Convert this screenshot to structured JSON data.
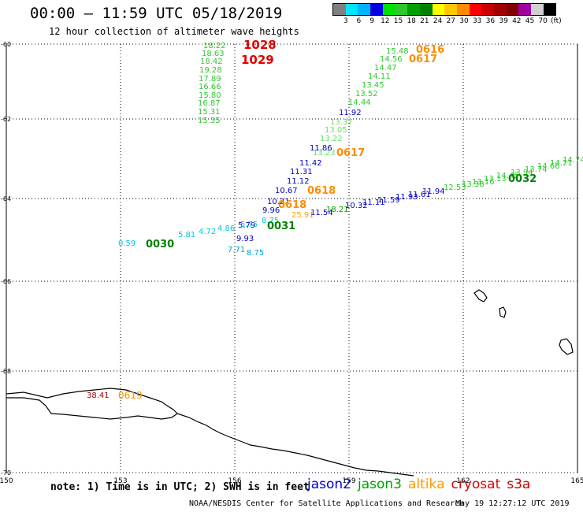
{
  "title": "00:00 – 11:59 UTC 05/18/2019",
  "subtitle": "12 hour collection of altimeter wave heights",
  "colorbar": {
    "colors": [
      "#808080",
      "#00e5ff",
      "#00b4ff",
      "#0000e0",
      "#00e000",
      "#2ec82e",
      "#00a000",
      "#008000",
      "#ffff00",
      "#ffc800",
      "#ff8c00",
      "#ff0000",
      "#c80000",
      "#a00000",
      "#800000",
      "#a000a0",
      "#d0d0d0",
      "#000000"
    ],
    "labels": [
      "3",
      "6",
      "9",
      "12",
      "15",
      "18",
      "21",
      "24",
      "27",
      "30",
      "33",
      "36",
      "39",
      "42",
      "45",
      "70",
      "(ft)"
    ]
  },
  "axes": {
    "x_ticks": [
      "150",
      "153",
      "156",
      "159",
      "162",
      "165"
    ],
    "y_ticks": [
      "-60",
      "-62",
      "-64",
      "-66",
      "-68",
      "-70"
    ]
  },
  "annotations": [
    {
      "text": "1028",
      "color": "#e00000"
    },
    {
      "text": "1029",
      "color": "#e00000"
    },
    {
      "text": "0616",
      "color": "#ff8c00"
    },
    {
      "text": "0617",
      "color": "#ff8c00"
    },
    {
      "text": "0617",
      "color": "#ff8c00"
    },
    {
      "text": "0618",
      "color": "#ff8c00"
    },
    {
      "text": "0618",
      "color": "#ff8c00"
    },
    {
      "text": "0030",
      "color": "#008000"
    },
    {
      "text": "0031",
      "color": "#008000"
    },
    {
      "text": "0032",
      "color": "#008000"
    }
  ],
  "tracks": {
    "cryosat": {
      "color": "#2ec82e",
      "values": [
        "18.22",
        "18.63",
        "18.42",
        "19.28",
        "17.89",
        "16.66",
        "15.80",
        "16.87",
        "15.31",
        "15.35"
      ]
    },
    "altika_green": {
      "color": "#2ec82e",
      "values": [
        "15.48",
        "14.56",
        "14.47",
        "14.11",
        "13.45",
        "13.52",
        "14.44"
      ]
    },
    "altika_blue": {
      "color": "#0000c8",
      "values": [
        "11.92"
      ]
    },
    "altika_lightgreen": {
      "color": "#66e066",
      "values": [
        "13.37",
        "13.05",
        "13.22",
        "13.23"
      ]
    },
    "altika_blue2": {
      "color": "#0000c8",
      "values": [
        "11.86",
        "11.42",
        "11.31",
        "11.12",
        "10.67",
        "10.21",
        "9.96"
      ]
    },
    "altika_mixed": {
      "color": "#0000c8",
      "values": [
        "9.93",
        "7.71",
        "8.75",
        "5.79"
      ]
    },
    "jason3": {
      "color": "#00c8e0",
      "values": [
        "0.59",
        "5.81",
        "4.72",
        "4.86",
        "5.75",
        "8.75"
      ]
    },
    "jason2": {
      "color": "#0000c8",
      "values": [
        "25.91",
        "11.54",
        "18.21",
        "10.32",
        "11.11",
        "11.59",
        "11.93",
        "11.61",
        "11.94"
      ]
    },
    "jason3_east": {
      "color": "#2ec82e",
      "values": [
        "12.53",
        "13.38",
        "13.16",
        "13.13",
        "14.45",
        "13.94",
        "13.74",
        "14.66",
        "14.21",
        "14.74"
      ]
    },
    "bottom": {
      "color": "#a00000",
      "values": [
        "38.41"
      ]
    },
    "bottom_label": {
      "color": "#ff8c00",
      "values": [
        "0619"
      ]
    }
  },
  "note": "note:  1) Time is in UTC;  2) SWH is in feet",
  "legend": [
    {
      "name": "jason2",
      "color": "#0000d0"
    },
    {
      "name": "jason3",
      "color": "#00a000"
    },
    {
      "name": "altika",
      "color": "#ff9900"
    },
    {
      "name": "cryosat",
      "color": "#e00000"
    },
    {
      "name": "s3a",
      "color": "#c80000"
    }
  ],
  "credit": "NOAA/NESDIS Center for Satellite Applications and Research",
  "timestamp": "May 19 12:27:12 UTC 2019"
}
